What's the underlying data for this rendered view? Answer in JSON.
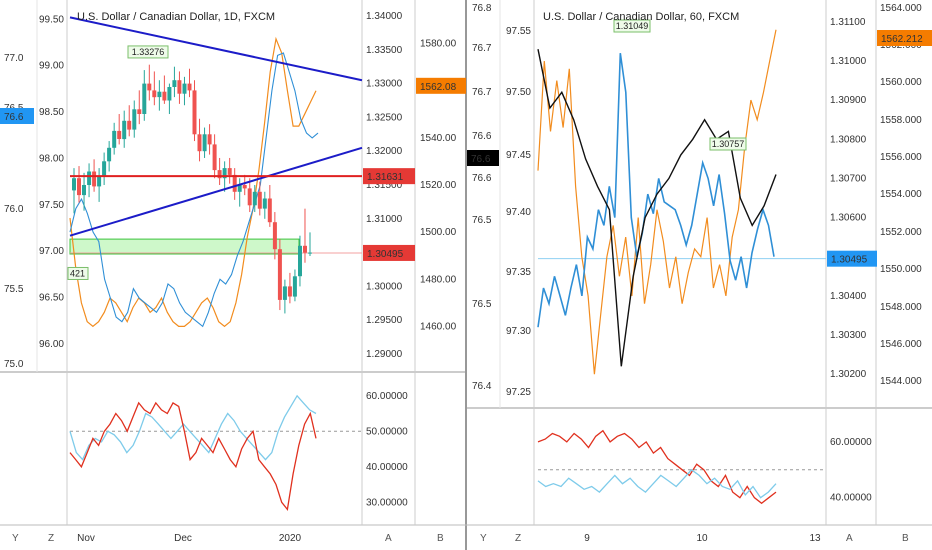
{
  "colors": {
    "up_candle": "#26a69a",
    "down_candle": "#ef5350",
    "trendline": "#1c1cc8",
    "support": "#e02020",
    "zone_fill": "#b9f5b3",
    "zone_stroke": "#3bc43b",
    "orange_series": "#f28c1e",
    "blue_series": "#2f8fd6",
    "black_series": "#111111",
    "light_blue": "#7ecbea",
    "rsi_red": "#e0301e",
    "price_tag_red": "#e53935",
    "tag_orange": "#f57c00",
    "tag_blue": "#2196f3",
    "tag_black": "#000000"
  },
  "left": {
    "title": "U.S. Dollar / Canadian Dollar, 1D, FXCM",
    "callout_high": "1.33276",
    "callout_low": "421",
    "outer_axis": {
      "ticks": [
        "99.50",
        "99.00",
        "98.50",
        "98.00",
        "97.50",
        "97.00",
        "96.50",
        "96.00"
      ]
    },
    "outer_axis2": {
      "ticks": [
        "77.0",
        "76.5",
        "76.0",
        "75.5",
        "75.0"
      ]
    },
    "outer_tag": "76.6",
    "price_axis": {
      "ticks": [
        "1.34000",
        "1.33500",
        "1.33000",
        "1.32500",
        "1.32000",
        "1.31500",
        "1.31000",
        "1.30500",
        "1.30000",
        "1.29500",
        "1.29000"
      ]
    },
    "tag_red": "1.31631",
    "tag_last": "1.30495",
    "index_axis": {
      "ticks": [
        "1580.00",
        "1560.00",
        "1540.00",
        "1520.00",
        "1500.00",
        "1480.00",
        "1460.00"
      ]
    },
    "tag_orange": "1562.08",
    "x_ticks": [
      "Nov",
      "Dec",
      "2020"
    ],
    "rsi_ticks": [
      "60.00000",
      "50.00000",
      "40.00000",
      "30.00000"
    ],
    "bottom_buttons": [
      "Y",
      "Z",
      "A",
      "B"
    ]
  },
  "right": {
    "title": "U.S. Dollar / Canadian Dollar, 60, FXCM",
    "callout_high": "1.31049",
    "callout_mid": "1.30757",
    "axis_a": {
      "ticks": [
        "76.8",
        "76.7",
        "76.7",
        "76.6",
        "76.6",
        "76.5",
        "76.5",
        "76.4"
      ]
    },
    "axis_b": {
      "ticks": [
        "97.55",
        "97.50",
        "97.45",
        "97.40",
        "97.35",
        "97.30",
        "97.25"
      ]
    },
    "tag_black": "76.6",
    "price_axis": {
      "ticks": [
        "1.31100",
        "1.31000",
        "1.30900",
        "1.30800",
        "1.30700",
        "1.30600",
        "1.30500",
        "1.30400",
        "1.30300",
        "1.30200"
      ]
    },
    "tag_last": "1.30495",
    "index_axis": {
      "ticks": [
        "1564.000",
        "1562.000",
        "1560.000",
        "1558.000",
        "1556.000",
        "1554.000",
        "1552.000",
        "1550.000",
        "1548.000",
        "1546.000",
        "1544.000"
      ]
    },
    "tag_orange": "1562.212",
    "x_ticks": [
      "9",
      "10",
      "13"
    ],
    "rsi_ticks": [
      "60.00000",
      "40.00000"
    ],
    "bottom_buttons": [
      "Y",
      "Z",
      "A",
      "B"
    ]
  },
  "chart_data": [
    {
      "type": "candlestick",
      "title": "U.S. Dollar / Canadian Dollar, 1D, FXCM",
      "ylim": [
        1.2885,
        1.341
      ],
      "candles_ohlc": [
        [
          1.3142,
          1.3175,
          1.3108,
          1.316
        ],
        [
          1.316,
          1.3178,
          1.3124,
          1.3135
        ],
        [
          1.3135,
          1.3168,
          1.3112,
          1.315
        ],
        [
          1.315,
          1.3182,
          1.3132,
          1.317
        ],
        [
          1.317,
          1.3188,
          1.314,
          1.3148
        ],
        [
          1.3148,
          1.3175,
          1.3125,
          1.3162
        ],
        [
          1.3162,
          1.3198,
          1.315,
          1.3185
        ],
        [
          1.3185,
          1.3215,
          1.317,
          1.3205
        ],
        [
          1.3205,
          1.3242,
          1.3195,
          1.323
        ],
        [
          1.323,
          1.3255,
          1.321,
          1.3218
        ],
        [
          1.3218,
          1.326,
          1.3205,
          1.3245
        ],
        [
          1.3245,
          1.3268,
          1.3222,
          1.3232
        ],
        [
          1.3232,
          1.3275,
          1.322,
          1.3262
        ],
        [
          1.3262,
          1.329,
          1.324,
          1.3255
        ],
        [
          1.3255,
          1.332,
          1.3245,
          1.33
        ],
        [
          1.33,
          1.3328,
          1.3275,
          1.329
        ],
        [
          1.329,
          1.3318,
          1.3268,
          1.328
        ],
        [
          1.328,
          1.3305,
          1.326,
          1.3288
        ],
        [
          1.3288,
          1.3312,
          1.327,
          1.3275
        ],
        [
          1.3275,
          1.33,
          1.3255,
          1.3295
        ],
        [
          1.3295,
          1.3325,
          1.328,
          1.3305
        ],
        [
          1.3305,
          1.3318,
          1.327,
          1.3285
        ],
        [
          1.3285,
          1.331,
          1.3268,
          1.33
        ],
        [
          1.33,
          1.3322,
          1.328,
          1.329
        ],
        [
          1.329,
          1.3305,
          1.3215,
          1.3225
        ],
        [
          1.3225,
          1.3248,
          1.3185,
          1.32
        ],
        [
          1.32,
          1.3235,
          1.319,
          1.3225
        ],
        [
          1.3225,
          1.324,
          1.3195,
          1.321
        ],
        [
          1.321,
          1.3225,
          1.316,
          1.3172
        ],
        [
          1.3172,
          1.319,
          1.315,
          1.316
        ],
        [
          1.316,
          1.3185,
          1.314,
          1.3175
        ],
        [
          1.3175,
          1.319,
          1.3152,
          1.3165
        ],
        [
          1.3165,
          1.3175,
          1.3128,
          1.314
        ],
        [
          1.314,
          1.316,
          1.3118,
          1.315
        ],
        [
          1.315,
          1.3165,
          1.3135,
          1.3145
        ],
        [
          1.3145,
          1.316,
          1.311,
          1.312
        ],
        [
          1.312,
          1.315,
          1.311,
          1.314
        ],
        [
          1.314,
          1.3155,
          1.3105,
          1.3115
        ],
        [
          1.3115,
          1.314,
          1.31,
          1.313
        ],
        [
          1.313,
          1.315,
          1.3088,
          1.3095
        ],
        [
          1.3095,
          1.311,
          1.304,
          1.3055
        ],
        [
          1.3055,
          1.307,
          1.2965,
          1.298
        ],
        [
          1.298,
          1.301,
          1.296,
          1.3
        ],
        [
          1.3,
          1.302,
          1.2975,
          1.2985
        ],
        [
          1.2985,
          1.3025,
          1.2978,
          1.3015
        ],
        [
          1.3015,
          1.3075,
          1.3,
          1.306
        ],
        [
          1.306,
          1.3115,
          1.3035,
          1.305
        ],
        [
          1.305,
          1.308,
          1.3045,
          1.305
        ]
      ],
      "trendline_upper": [
        [
          0,
          1.3398
        ],
        [
          1,
          1.3305
        ]
      ],
      "trendline_lower": [
        [
          0,
          1.3075
        ],
        [
          1,
          1.3205
        ]
      ],
      "support_level": 1.31631,
      "zone": [
        1.3048,
        1.307
      ],
      "last_price": 1.30495,
      "x_ticks": [
        "Nov",
        "Dec",
        "2020"
      ],
      "orange_series": [
        1506,
        1485,
        1470,
        1462,
        1460,
        1462,
        1466,
        1472,
        1470,
        1466,
        1462,
        1468,
        1472,
        1470,
        1466,
        1468,
        1472,
        1466,
        1462,
        1460,
        1460,
        1462,
        1466,
        1470,
        1472,
        1468,
        1462,
        1460,
        1462,
        1470,
        1482,
        1498,
        1510,
        1526,
        1546,
        1568,
        1582,
        1576,
        1560,
        1545,
        1545,
        1550,
        1555,
        1560
      ],
      "blue_series": [
        1500,
        1510,
        1514,
        1508,
        1500,
        1496,
        1480,
        1472,
        1464,
        1462,
        1466,
        1476,
        1472,
        1470,
        1468,
        1466,
        1470,
        1478,
        1476,
        1470,
        1466,
        1464,
        1462,
        1460,
        1466,
        1474,
        1480,
        1478,
        1482,
        1490,
        1496,
        1504,
        1512,
        1520,
        1540,
        1560,
        1575,
        1576,
        1568,
        1560,
        1548,
        1542,
        1540,
        1542
      ],
      "rsi_ticks": [
        "60.00000",
        "50.00000",
        "40.00000",
        "30.00000"
      ],
      "rsi_red": [
        44,
        42,
        40,
        44,
        48,
        46,
        50,
        52,
        55,
        53,
        50,
        54,
        58,
        56,
        55,
        58,
        56,
        55,
        58,
        57,
        50,
        42,
        44,
        48,
        46,
        44,
        48,
        45,
        42,
        40,
        45,
        48,
        50,
        42,
        40,
        38,
        35,
        30,
        28,
        38,
        46,
        52,
        55,
        48
      ],
      "rsi_blue": [
        50,
        44,
        42,
        46,
        48,
        47,
        50,
        49,
        47,
        44,
        46,
        50,
        55,
        54,
        52,
        50,
        48,
        50,
        52,
        50,
        48,
        46,
        44,
        48,
        52,
        55,
        53,
        50,
        48,
        46,
        44,
        42,
        44,
        50,
        54,
        57,
        60,
        58,
        56,
        55
      ],
      "rsi_ref": 50
    },
    {
      "type": "line",
      "title": "U.S. Dollar / Canadian Dollar, 60, FXCM",
      "x_ticks": [
        "9",
        "10",
        "13"
      ],
      "last_price": 1.30495,
      "blue_series": [
        1.3032,
        1.3042,
        1.3038,
        1.3045,
        1.304,
        1.3035,
        1.3042,
        1.3048,
        1.304,
        1.3055,
        1.3052,
        1.3062,
        1.3058,
        1.3068,
        1.306,
        1.3102,
        1.3092,
        1.306,
        1.305,
        1.3056,
        1.3066,
        1.3061,
        1.307,
        1.3064,
        1.3063,
        1.3062,
        1.3058,
        1.3053,
        1.3058,
        1.3066,
        1.3074,
        1.307,
        1.3063,
        1.3071,
        1.3061,
        1.3049,
        1.3044,
        1.305,
        1.3042,
        1.3051,
        1.3057,
        1.3062,
        1.3058,
        1.305
      ],
      "orange_series": [
        1.3072,
        1.31,
        1.3082,
        1.3095,
        1.3083,
        1.3098,
        1.3068,
        1.305,
        1.304,
        1.302,
        1.3035,
        1.305,
        1.3058,
        1.3045,
        1.3055,
        1.304,
        1.306,
        1.3038,
        1.3048,
        1.3062,
        1.3054,
        1.3042,
        1.305,
        1.3038,
        1.3046,
        1.3052,
        1.305,
        1.306,
        1.3042,
        1.3048,
        1.304,
        1.3055,
        1.3062,
        1.3078,
        1.309,
        1.3085,
        1.3092,
        1.31,
        1.3108
      ],
      "black_series": [
        1.3103,
        1.3088,
        1.3092,
        1.3085,
        1.3075,
        1.3068,
        1.3062,
        1.3022,
        1.3045,
        1.306,
        1.3066,
        1.307,
        1.3076,
        1.308,
        1.3085,
        1.308,
        1.3082,
        1.3065,
        1.3058,
        1.3063,
        1.3071
      ],
      "rsi_ticks": [
        "60.00000",
        "40.00000"
      ],
      "rsi_red": [
        60,
        61,
        63,
        62,
        60,
        63,
        61,
        58,
        62,
        64,
        60,
        62,
        63,
        61,
        58,
        60,
        56,
        58,
        54,
        52,
        50,
        48,
        52,
        50,
        46,
        44,
        48,
        42,
        40,
        44,
        40,
        38,
        40,
        42
      ],
      "rsi_blue": [
        46,
        44,
        45,
        44,
        47,
        45,
        43,
        44,
        42,
        45,
        48,
        45,
        47,
        44,
        42,
        45,
        48,
        46,
        44,
        47,
        50,
        48,
        45,
        47,
        44,
        43,
        46,
        41,
        44,
        40,
        42,
        45
      ],
      "rsi_ref": 50
    }
  ]
}
